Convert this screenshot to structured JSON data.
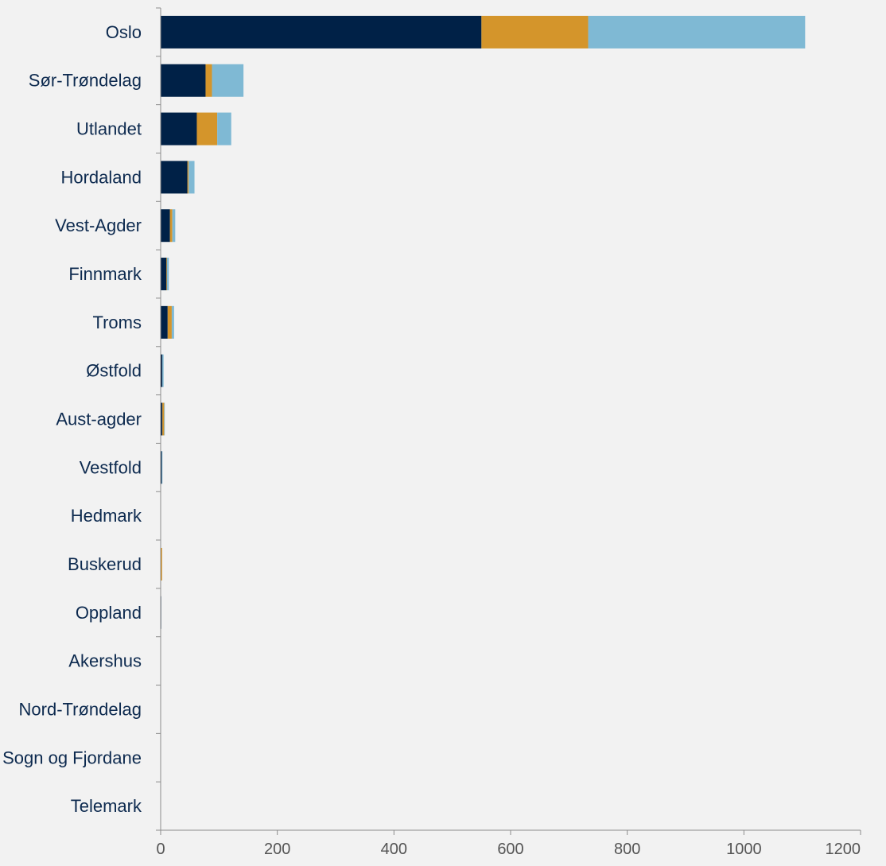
{
  "chart_data": {
    "type": "bar",
    "orientation": "horizontal",
    "stacked": true,
    "categories": [
      "Oslo",
      "Sør-Trøndelag",
      "Utlandet",
      "Hordaland",
      "Vest-Agder",
      "Finnmark",
      "Troms",
      "Østfold",
      "Aust-agder",
      "Vestfold",
      "Hedmark",
      "Buskerud",
      "Oppland",
      "Akershus",
      "Nord-Trøndelag",
      "Sogn og Fjordane",
      "Telemark"
    ],
    "series": [
      {
        "color": "#002147",
        "values": [
          550,
          77,
          62,
          46,
          16,
          10,
          12,
          3,
          3,
          2,
          0.5,
          0.5,
          1,
          0.3,
          0.2,
          0.2,
          0.2
        ]
      },
      {
        "color": "#d4952b",
        "values": [
          183,
          11,
          35,
          2,
          4,
          1,
          7,
          0,
          3,
          0,
          0,
          2,
          0,
          0,
          0,
          0,
          0
        ]
      },
      {
        "color": "#7fb9d4",
        "values": [
          372,
          54,
          24,
          10,
          5,
          3,
          4,
          2,
          1,
          1,
          0,
          0,
          0,
          0,
          0,
          0,
          0
        ]
      }
    ],
    "xlim": [
      0,
      1200
    ],
    "xticks": [
      "0",
      "200",
      "400",
      "600",
      "800",
      "1000",
      "1200"
    ],
    "title": "",
    "xlabel": "",
    "ylabel": "",
    "grid": false,
    "legend": false
  }
}
